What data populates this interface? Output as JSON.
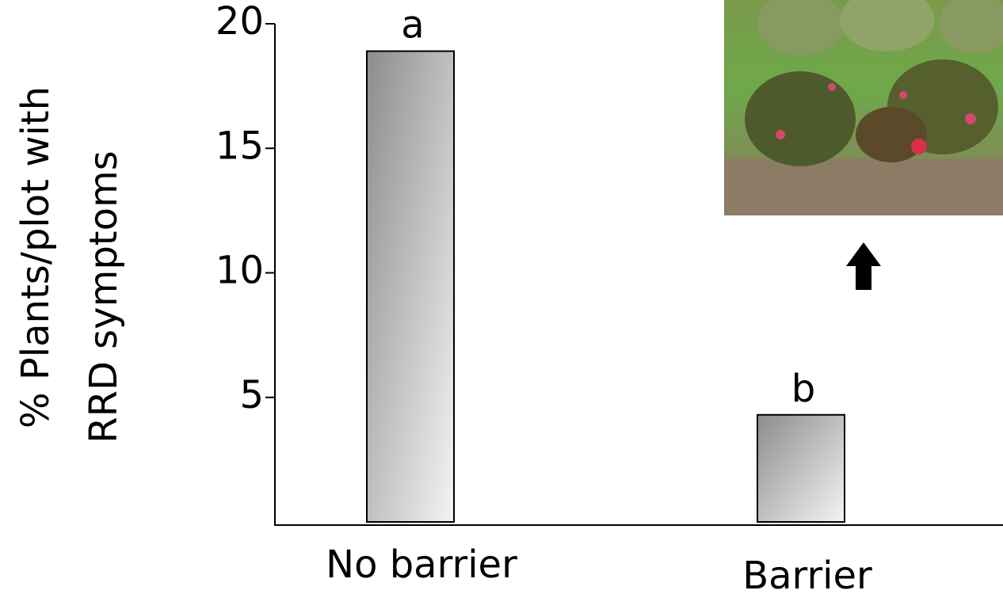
{
  "chart_data": {
    "type": "bar",
    "ylabel": [
      "% Plants/plot with",
      "RRD symptoms"
    ],
    "categories": [
      "No barrier",
      "Barrier"
    ],
    "values": [
      18.9,
      4.3
    ],
    "letters": [
      "a",
      "b"
    ],
    "color": "#b0b0b0",
    "ylim": [
      0,
      20
    ],
    "yticks": [
      5,
      10,
      15,
      20
    ],
    "grid": false
  }
}
